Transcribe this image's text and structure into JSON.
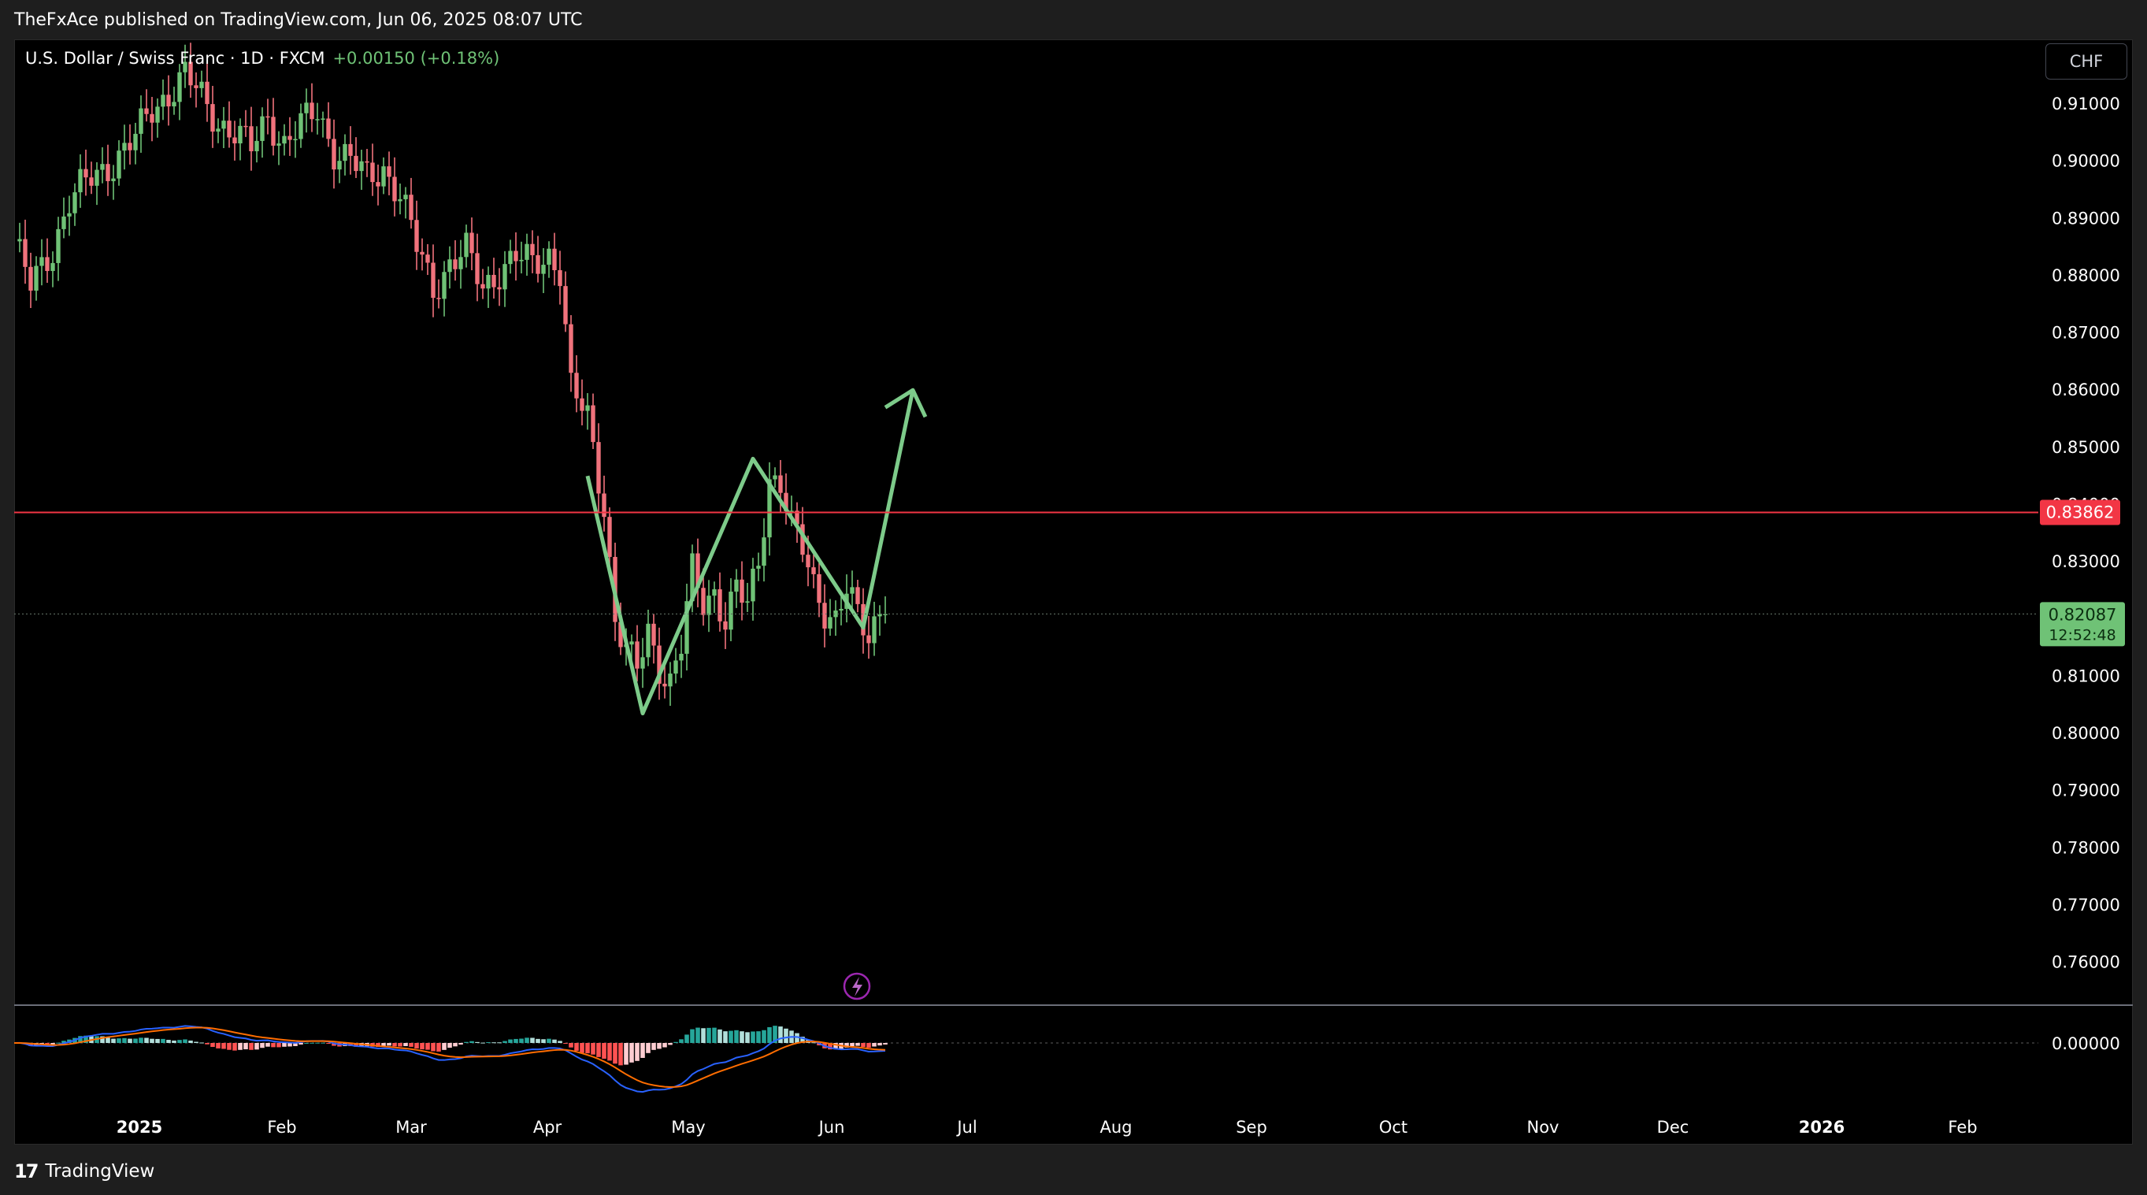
{
  "header": {
    "published": "TheFxAce published on TradingView.com, Jun 06, 2025 08:07 UTC"
  },
  "legend": {
    "symbol": "U.S. Dollar / Swiss Franc · 1D · FXCM",
    "change": "+0.00150 (+0.18%)"
  },
  "currency_button": "CHF",
  "footer": {
    "brand": "TradingView",
    "logo_glyph": "17"
  },
  "colors": {
    "up": "#6fc276",
    "down": "#f0727c",
    "resistance": "#f23645",
    "drawing": "#7dcb8a",
    "macd": "#2962ff",
    "signal": "#ff6d00"
  },
  "chart_data": {
    "type": "candlestick",
    "title": "U.S. Dollar / Swiss Franc · 1D · FXCM",
    "y_axis": {
      "range": [
        0.7525,
        0.9213
      ],
      "ticks": [
        "0.91000",
        "0.90000",
        "0.89000",
        "0.88000",
        "0.87000",
        "0.86000",
        "0.85000",
        "0.84000",
        "0.83000",
        "0.82000",
        "0.81000",
        "0.80000",
        "0.79000",
        "0.78000",
        "0.77000",
        "0.76000"
      ]
    },
    "x_axis": {
      "ticks": [
        {
          "label": "2025",
          "bold": true
        },
        {
          "label": "Feb"
        },
        {
          "label": "Mar"
        },
        {
          "label": "Apr"
        },
        {
          "label": "May"
        },
        {
          "label": "Jun"
        },
        {
          "label": "Jul"
        },
        {
          "label": "Aug"
        },
        {
          "label": "Sep"
        },
        {
          "label": "Oct"
        },
        {
          "label": "Nov"
        },
        {
          "label": "Dec"
        },
        {
          "label": "2026",
          "bold": true
        },
        {
          "label": "Feb"
        }
      ]
    },
    "price_path": [
      [
        0,
        0.886
      ],
      [
        3,
        0.878
      ],
      [
        7,
        0.885
      ],
      [
        10,
        0.893
      ],
      [
        14,
        0.897
      ],
      [
        18,
        0.9
      ],
      [
        22,
        0.904
      ],
      [
        25,
        0.909
      ],
      [
        28,
        0.912
      ],
      [
        31,
        0.915
      ],
      [
        34,
        0.911
      ],
      [
        37,
        0.907
      ],
      [
        40,
        0.905
      ],
      [
        43,
        0.902
      ],
      [
        46,
        0.908
      ],
      [
        49,
        0.903
      ],
      [
        52,
        0.906
      ],
      [
        55,
        0.909
      ],
      [
        58,
        0.902
      ],
      [
        61,
        0.9
      ],
      [
        64,
        0.897
      ],
      [
        67,
        0.899
      ],
      [
        70,
        0.894
      ],
      [
        73,
        0.885
      ],
      [
        76,
        0.878
      ],
      [
        79,
        0.882
      ],
      [
        82,
        0.884
      ],
      [
        85,
        0.878
      ],
      [
        88,
        0.881
      ],
      [
        91,
        0.883
      ],
      [
        94,
        0.882
      ],
      [
        97,
        0.884
      ],
      [
        99,
        0.881
      ],
      [
        101,
        0.86
      ],
      [
        104,
        0.855
      ],
      [
        107,
        0.84
      ],
      [
        109,
        0.82
      ],
      [
        111,
        0.814
      ],
      [
        113,
        0.811
      ],
      [
        115,
        0.818
      ],
      [
        117,
        0.812
      ],
      [
        119,
        0.809
      ],
      [
        121,
        0.815
      ],
      [
        123,
        0.828
      ],
      [
        125,
        0.823
      ],
      [
        127,
        0.825
      ],
      [
        129,
        0.82
      ],
      [
        131,
        0.825
      ],
      [
        133,
        0.822
      ],
      [
        135,
        0.83
      ],
      [
        137,
        0.845
      ],
      [
        139,
        0.844
      ],
      [
        141,
        0.836
      ],
      [
        143,
        0.832
      ],
      [
        145,
        0.826
      ],
      [
        147,
        0.822
      ],
      [
        149,
        0.82
      ],
      [
        151,
        0.825
      ],
      [
        153,
        0.82
      ],
      [
        155,
        0.817
      ],
      [
        157,
        0.822
      ],
      [
        158,
        0.8209
      ]
    ],
    "last_price": "0.82087",
    "countdown": "12:52:48",
    "resistance_line": "0.83862",
    "drawn_pattern_points": [
      [
        104,
        0.845
      ],
      [
        114,
        0.8035
      ],
      [
        134,
        0.848
      ],
      [
        154,
        0.8185
      ],
      [
        163,
        0.86
      ]
    ],
    "macd": {
      "zero_label": "0.00000"
    }
  }
}
